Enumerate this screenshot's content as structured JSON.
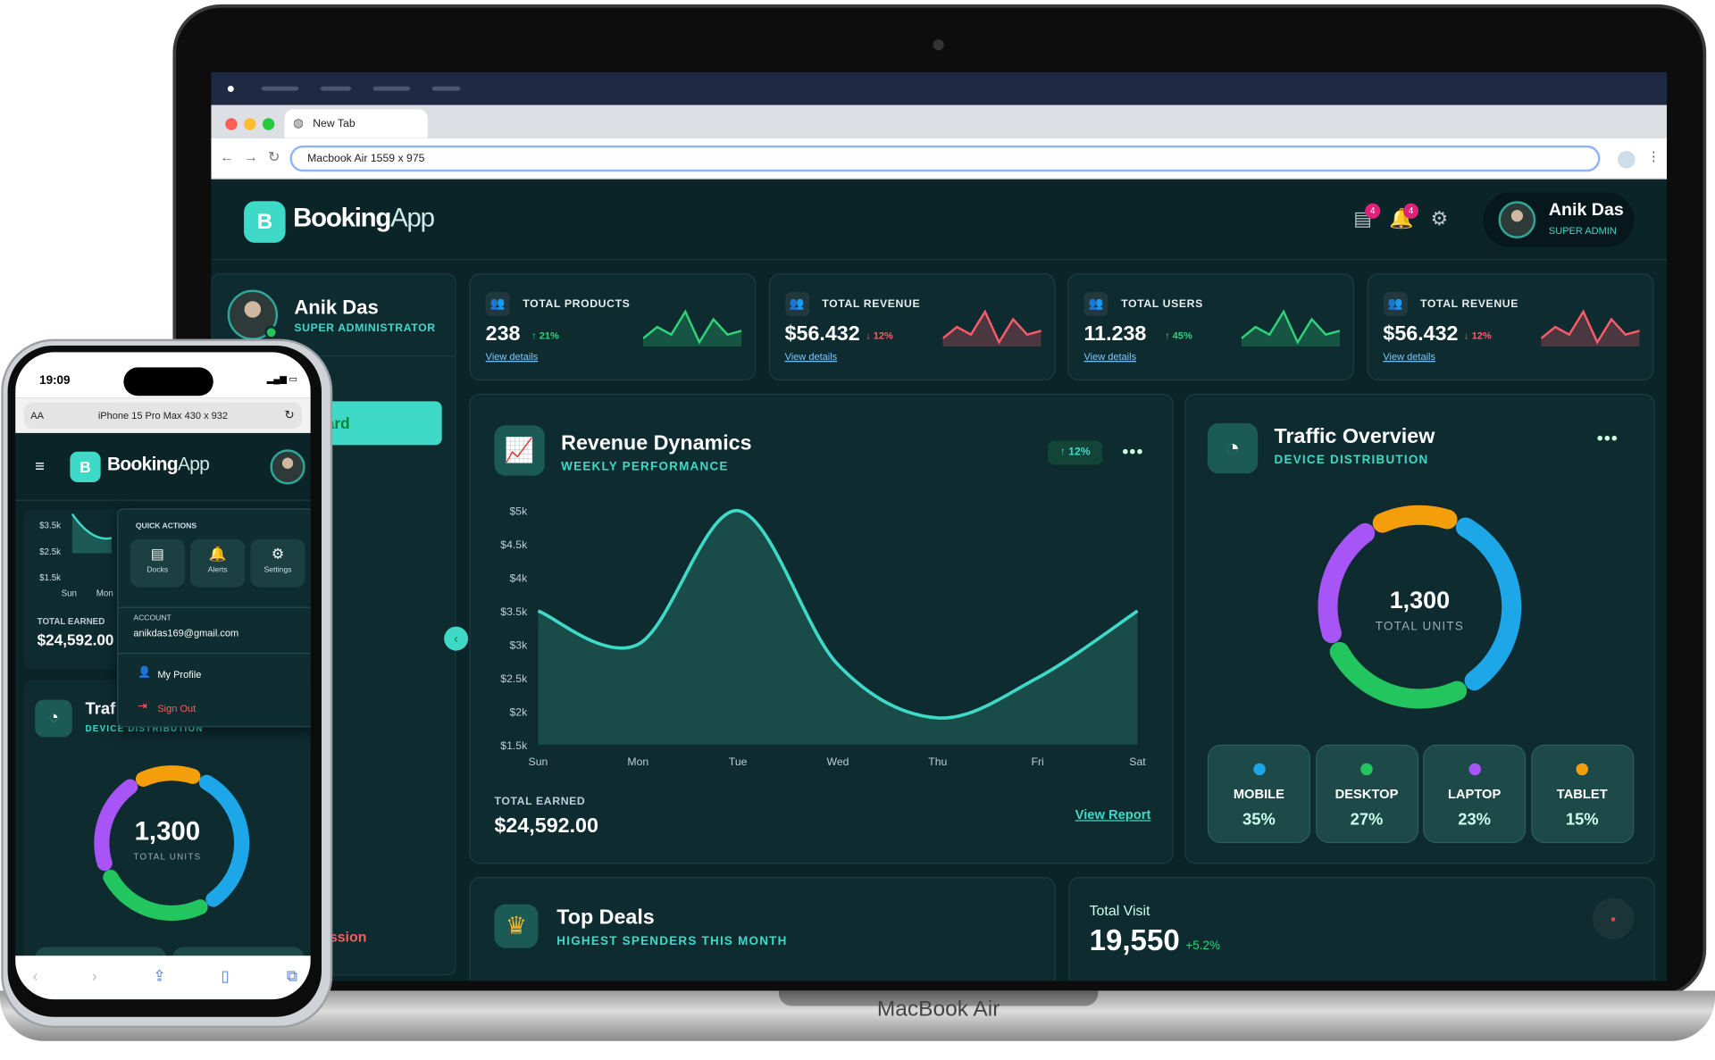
{
  "browser": {
    "tab_title": "New Tab",
    "address": "Macbook Air   1559 x 975"
  },
  "laptop_label": "MacBook Air",
  "app": {
    "logo_letter": "B",
    "logo_bold": "Booking",
    "logo_light": "App",
    "accent": "#3fd9c8",
    "background": "#0b2428"
  },
  "header": {
    "user_name": "Anik Das",
    "user_role": "SUPER ADMIN",
    "docs_badge": "4",
    "alerts_badge": "4"
  },
  "sidebar": {
    "user_name": "Anik Das",
    "user_role": "SUPER ADMINISTRATOR",
    "active_item_partial": "ard",
    "footer_partial": "ession"
  },
  "stats": [
    {
      "title": "TOTAL PRODUCTS",
      "value": "238",
      "change": "21%",
      "dir": "up",
      "link": "View details",
      "spark": [
        5,
        8,
        6,
        12,
        4,
        10,
        6,
        7
      ]
    },
    {
      "title": "TOTAL REVENUE",
      "value": "$56.432",
      "change": "12%",
      "dir": "down",
      "link": "View details",
      "spark": [
        5,
        8,
        6,
        12,
        4,
        10,
        6,
        7
      ]
    },
    {
      "title": "TOTAL USERS",
      "value": "11.238",
      "change": "45%",
      "dir": "up",
      "link": "View details",
      "spark": [
        5,
        8,
        6,
        12,
        4,
        10,
        6,
        7
      ]
    },
    {
      "title": "TOTAL REVENUE",
      "value": "$56.432",
      "change": "12%",
      "dir": "down",
      "link": "View details",
      "spark": [
        5,
        8,
        6,
        12,
        4,
        10,
        6,
        7
      ]
    }
  ],
  "revenue": {
    "title": "Revenue Dynamics",
    "subtitle": "WEEKLY PERFORMANCE",
    "badge": "12%",
    "menu": "•••",
    "earned_label": "TOTAL EARNED",
    "earned": "$24,592.00",
    "report_link": "View Report"
  },
  "chart_data": {
    "type": "area",
    "categories": [
      "Sun",
      "Mon",
      "Tue",
      "Wed",
      "Thu",
      "Fri",
      "Sat"
    ],
    "values": [
      3500,
      3000,
      5000,
      2700,
      1900,
      2500,
      3500
    ],
    "ylim": [
      1500,
      5000
    ],
    "yticks": [
      "$1.5k",
      "$2k",
      "$2.5k",
      "$3k",
      "$3.5k",
      "$4k",
      "$4.5k",
      "$5k"
    ],
    "ytick_values": [
      1500,
      2000,
      2500,
      3000,
      3500,
      4000,
      4500,
      5000
    ],
    "grid": false,
    "color": "#3fd9c8"
  },
  "traffic": {
    "title": "Traffic Overview",
    "subtitle": "DEVICE DISTRIBUTION",
    "menu": "•••",
    "total": "1,300",
    "total_label": "TOTAL UNITS",
    "devices": [
      {
        "name": "MOBILE",
        "pct": "35%",
        "share": 35,
        "color": "#1ea7e8"
      },
      {
        "name": "DESKTOP",
        "pct": "27%",
        "share": 27,
        "color": "#22c55e"
      },
      {
        "name": "LAPTOP",
        "pct": "23%",
        "share": 23,
        "color": "#a855f7"
      },
      {
        "name": "TABLET",
        "pct": "15%",
        "share": 15,
        "color": "#f59e0b"
      }
    ]
  },
  "deals": {
    "title": "Top Deals",
    "subtitle": "HIGHEST SPENDERS THIS MONTH"
  },
  "visit": {
    "label": "Total Visit",
    "value": "19,550",
    "change": "+5.2%"
  },
  "phone": {
    "time": "19:09",
    "url": "iPhone 15 Pro Max  430 x 932",
    "aa": "AA",
    "logo_bold": "Booking",
    "logo_light": "App",
    "mini_ticks": [
      "$3.5k",
      "$2.5k",
      "$1.5k"
    ],
    "mini_days": [
      "Sun",
      "Mon"
    ],
    "earned_label": "TOTAL EARNED",
    "earned": "$24,592.00",
    "traffic_title": "Traf",
    "traffic_sub": "DEVICE DISTRIBUTION",
    "total": "1,300",
    "total_label": "TOTAL UNITS",
    "menu": {
      "quick_actions": "QUICK ACTIONS",
      "docks": "Docks",
      "alerts": "Alerts",
      "settings": "Settings",
      "account_label": "ACCOUNT",
      "email": "anikdas169@gmail.com",
      "profile": "My Profile",
      "signout": "Sign Out"
    }
  }
}
